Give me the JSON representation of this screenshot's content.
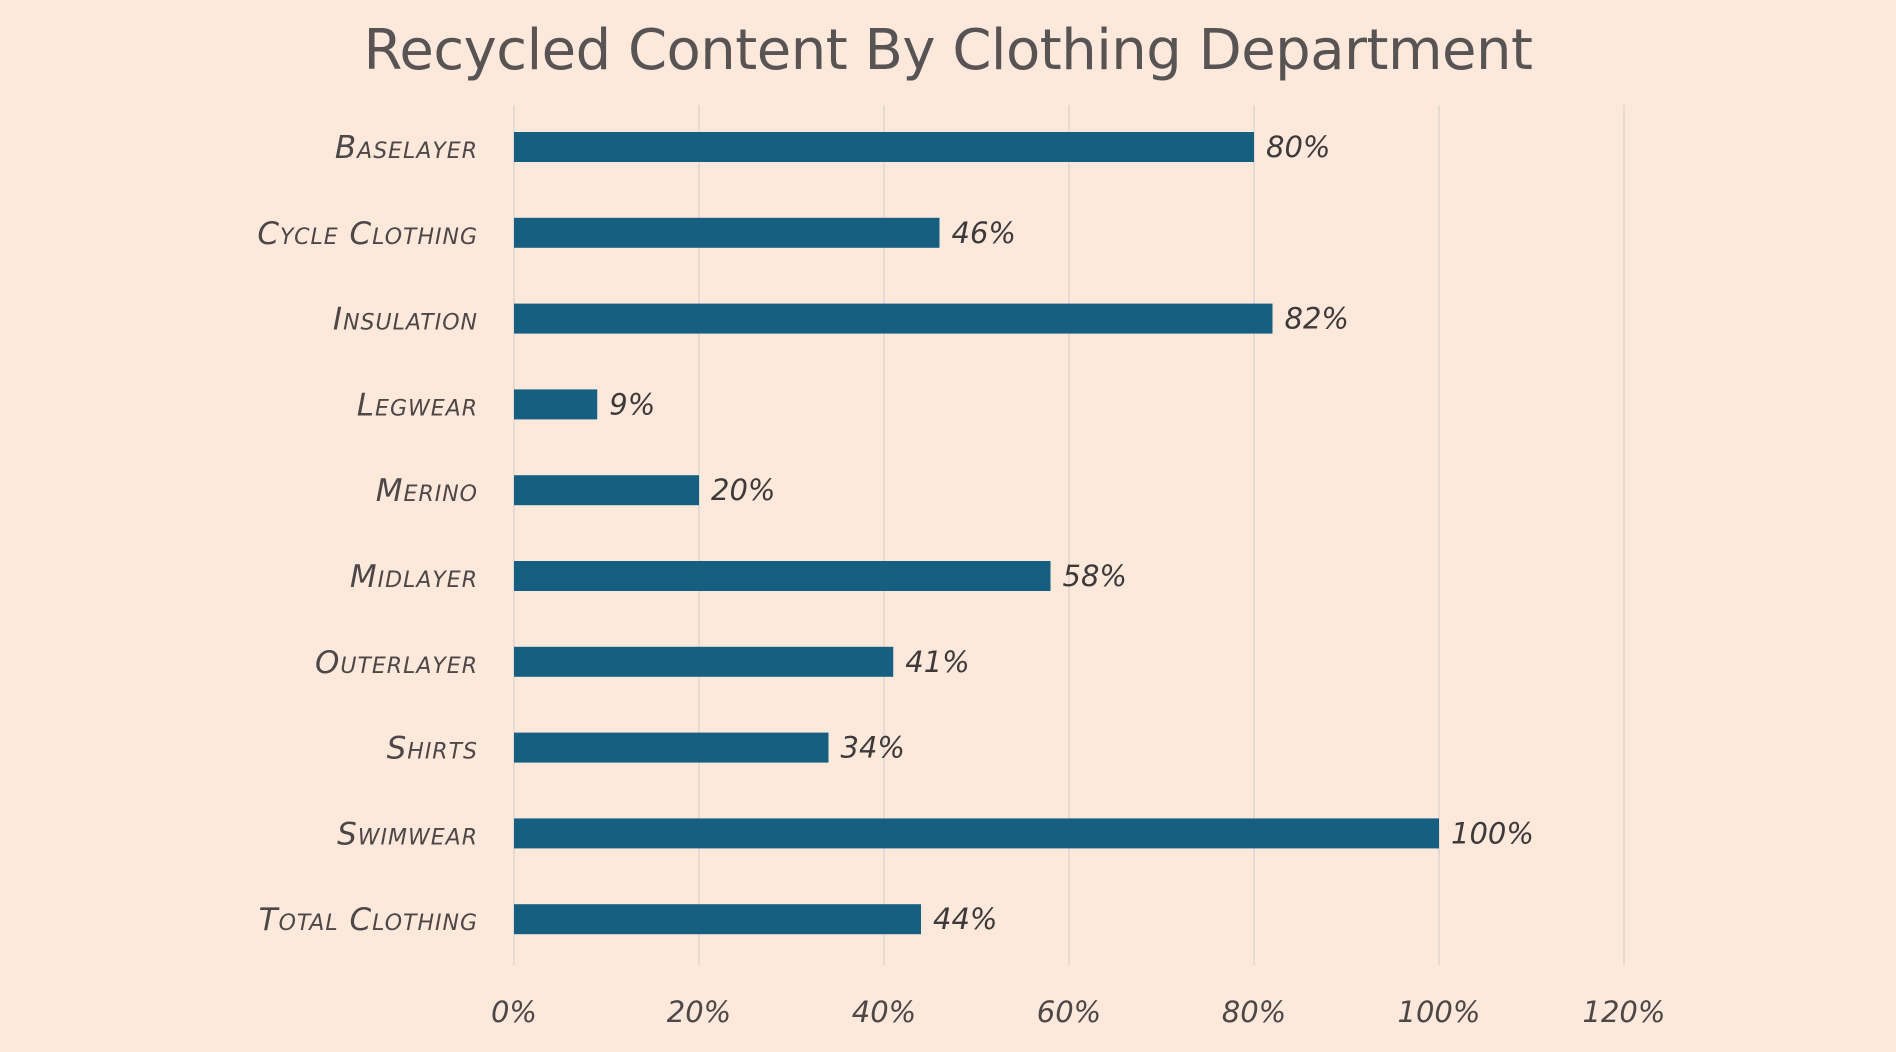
{
  "chart_data": {
    "type": "bar",
    "orientation": "horizontal",
    "title": "Recycled Content By Clothing Department",
    "categories": [
      "Baselayer",
      "Cycle Clothing",
      "Insulation",
      "Legwear",
      "Merino",
      "Midlayer",
      "Outerlayer",
      "Shirts",
      "Swimwear",
      "Total Clothing"
    ],
    "values": [
      80,
      46,
      82,
      9,
      20,
      58,
      41,
      34,
      100,
      44
    ],
    "data_labels": [
      "80%",
      "46%",
      "82%",
      "9%",
      "20%",
      "58%",
      "41%",
      "34%",
      "100%",
      "44%"
    ],
    "xlim": [
      0,
      120
    ],
    "x_ticks": [
      0,
      20,
      40,
      60,
      80,
      100,
      120
    ],
    "x_tick_labels": [
      "0%",
      "20%",
      "40%",
      "60%",
      "80%",
      "100%",
      "120%"
    ],
    "xlabel": "",
    "ylabel": "",
    "grid": "vertical",
    "legend": "none",
    "colors": {
      "bar": "#175f80",
      "background": "#fde8dc",
      "grid": "#e0d6d0",
      "text": "#4e4747"
    }
  }
}
